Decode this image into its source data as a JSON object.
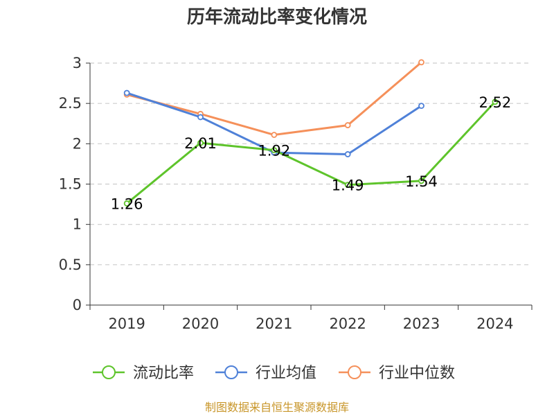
{
  "chart_data": {
    "type": "line",
    "title": "历年流动比率变化情况",
    "categories": [
      "2019",
      "2020",
      "2021",
      "2022",
      "2023",
      "2024"
    ],
    "ylim": [
      0,
      3
    ],
    "yticks": [
      0,
      0.5,
      1,
      1.5,
      2,
      2.5,
      3
    ],
    "ytick_labels": [
      "0",
      "0.5",
      "1",
      "1.5",
      "2",
      "2.5",
      "3"
    ],
    "grid": true,
    "legend_position": "bottom",
    "series": [
      {
        "name": "流动比率",
        "color": "#5ec42b",
        "values": [
          1.26,
          2.01,
          1.92,
          1.49,
          1.54,
          2.52
        ],
        "labels": [
          "1.26",
          "2.01",
          "1.92",
          "1.49",
          "1.54",
          "2.52"
        ]
      },
      {
        "name": "行业均值",
        "color": "#4f81d8",
        "values": [
          2.63,
          2.33,
          1.89,
          1.87,
          2.47,
          null
        ]
      },
      {
        "name": "行业中位数",
        "color": "#f5905a",
        "values": [
          2.61,
          2.37,
          2.11,
          2.23,
          3.01,
          null
        ]
      }
    ],
    "source": "制图数据来自恒生聚源数据库",
    "source_color": "#c8962a"
  }
}
